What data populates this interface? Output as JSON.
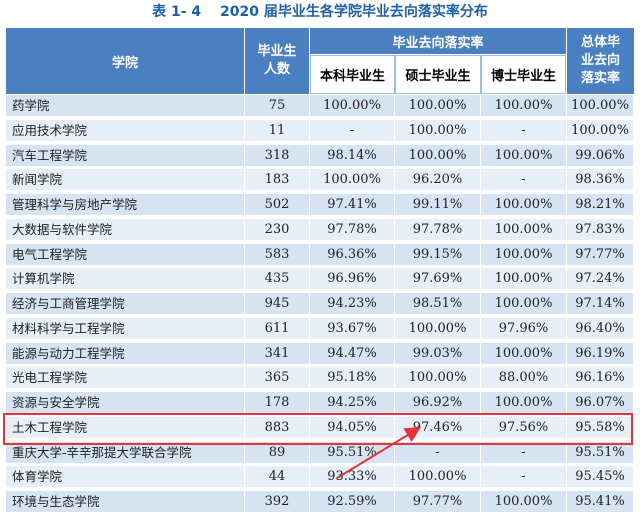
{
  "caption": {
    "table_no": "表 1- 4",
    "title": "2020 届毕业生各学院毕业去向落实率分布"
  },
  "header": {
    "college": "学院",
    "graduates_line1": "毕业生",
    "graduates_line2": "人数",
    "group": "毕业去向落实率",
    "bachelor": "本科毕业生",
    "master": "硕士毕业生",
    "doctor": "博士毕业生",
    "overall_line1": "总体毕",
    "overall_line2": "业去向",
    "overall_line3": "落实率"
  },
  "rows": [
    {
      "college": "药学院",
      "count": "75",
      "bachelor": "100.00%",
      "master": "100.00%",
      "doctor": "100.00%",
      "overall": "100.00%"
    },
    {
      "college": "应用技术学院",
      "count": "11",
      "bachelor": "-",
      "master": "100.00%",
      "doctor": "-",
      "overall": "100.00%"
    },
    {
      "college": "汽车工程学院",
      "count": "318",
      "bachelor": "98.14%",
      "master": "100.00%",
      "doctor": "100.00%",
      "overall": "99.06%"
    },
    {
      "college": "新闻学院",
      "count": "183",
      "bachelor": "100.00%",
      "master": "96.20%",
      "doctor": "-",
      "overall": "98.36%"
    },
    {
      "college": "管理科学与房地产学院",
      "count": "502",
      "bachelor": "97.41%",
      "master": "99.11%",
      "doctor": "100.00%",
      "overall": "98.21%"
    },
    {
      "college": "大数据与软件学院",
      "count": "230",
      "bachelor": "97.78%",
      "master": "97.78%",
      "doctor": "100.00%",
      "overall": "97.83%"
    },
    {
      "college": "电气工程学院",
      "count": "583",
      "bachelor": "96.36%",
      "master": "99.15%",
      "doctor": "100.00%",
      "overall": "97.77%"
    },
    {
      "college": "计算机学院",
      "count": "435",
      "bachelor": "96.96%",
      "master": "97.69%",
      "doctor": "100.00%",
      "overall": "97.24%"
    },
    {
      "college": "经济与工商管理学院",
      "count": "945",
      "bachelor": "94.23%",
      "master": "98.51%",
      "doctor": "100.00%",
      "overall": "97.14%"
    },
    {
      "college": "材料科学与工程学院",
      "count": "611",
      "bachelor": "93.67%",
      "master": "100.00%",
      "doctor": "97.96%",
      "overall": "96.40%"
    },
    {
      "college": "能源与动力工程学院",
      "count": "341",
      "bachelor": "94.47%",
      "master": "99.03%",
      "doctor": "100.00%",
      "overall": "96.19%"
    },
    {
      "college": "光电工程学院",
      "count": "365",
      "bachelor": "95.18%",
      "master": "100.00%",
      "doctor": "88.00%",
      "overall": "96.16%"
    },
    {
      "college": "资源与安全学院",
      "count": "178",
      "bachelor": "94.25%",
      "master": "96.92%",
      "doctor": "100.00%",
      "overall": "96.07%"
    },
    {
      "college": "土木工程学院",
      "count": "883",
      "bachelor": "94.05%",
      "master": "97.46%",
      "doctor": "97.56%",
      "overall": "95.58%"
    },
    {
      "college": "重庆大学-辛辛那提大学联合学院",
      "count": "89",
      "bachelor": "95.51%",
      "master": "-",
      "doctor": "-",
      "overall": "95.51%"
    },
    {
      "college": "体育学院",
      "count": "44",
      "bachelor": "93.33%",
      "master": "100.00%",
      "doctor": "-",
      "overall": "95.45%"
    },
    {
      "college": "环境与生态学院",
      "count": "392",
      "bachelor": "92.59%",
      "master": "97.77%",
      "doctor": "100.00%",
      "overall": "95.41%"
    }
  ],
  "colors": {
    "header_bg": "#4a7fc1",
    "row_bg": "#d5e3f3",
    "highlight": "#e3343a",
    "caption": "#1f5fa8"
  }
}
